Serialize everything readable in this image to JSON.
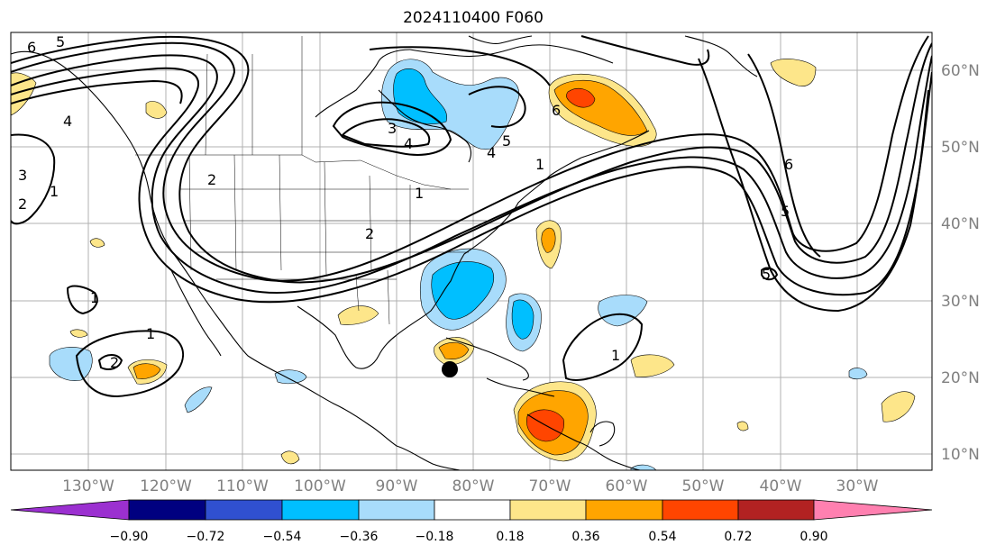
{
  "title": "2024110400 F060",
  "lon_labels": [
    "130°W",
    "120°W",
    "110°W",
    "100°W",
    "90°W",
    "80°W",
    "70°W",
    "60°W",
    "50°W",
    "40°W",
    "30°W"
  ],
  "lat_labels": [
    "60°N",
    "50°N",
    "40°N",
    "30°N",
    "20°N",
    "10°N"
  ],
  "contour_labels": [
    "6",
    "5",
    "4",
    "3",
    "4",
    "5",
    "4",
    "6",
    "1",
    "2",
    "1",
    "1",
    "2",
    "3",
    "2",
    "1",
    "1",
    "2",
    "1",
    "6",
    "5",
    "5"
  ],
  "colorbar": {
    "ticks": [
      "−0.90",
      "−0.72",
      "−0.54",
      "−0.36",
      "−0.18",
      "0.18",
      "0.36",
      "0.54",
      "0.72",
      "0.90"
    ],
    "colors": [
      "#9b30d0",
      "#000080",
      "#3050d0",
      "#00bfff",
      "#a8dcfb",
      "#ffffff",
      "#fde68a",
      "#ffa500",
      "#ff4500",
      "#b22222",
      "#ff80b0"
    ]
  },
  "marker": "storm-center"
}
